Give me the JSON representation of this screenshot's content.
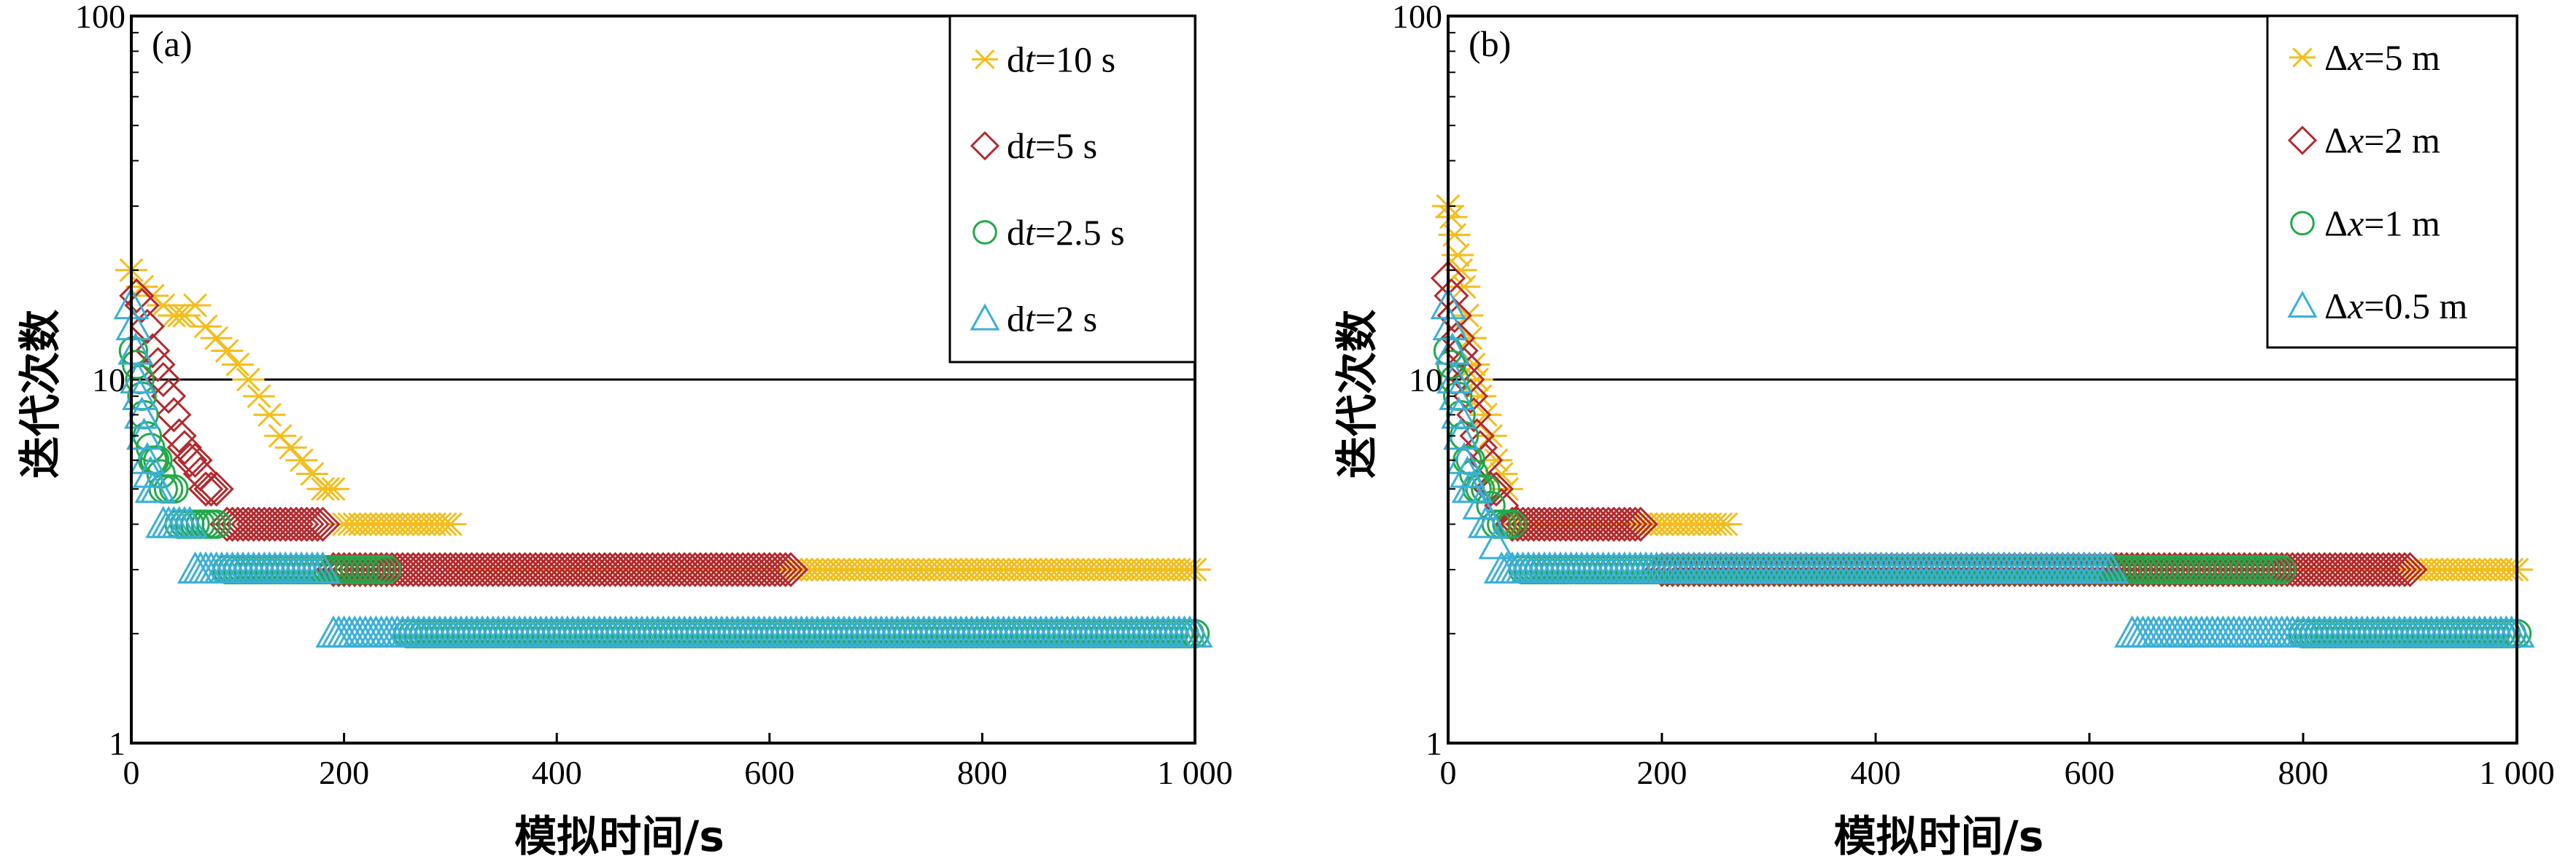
{
  "chart_data": [
    {
      "type": "scatter",
      "panel_label": "(a)",
      "xlabel": "模拟时间/s",
      "ylabel": "迭代次数",
      "xscale": "linear",
      "yscale": "log",
      "xlim": [
        0,
        1000
      ],
      "ylim": [
        1,
        100
      ],
      "xticks": [
        0,
        200,
        400,
        600,
        800,
        1000
      ],
      "xtick_labels": [
        "0",
        "200",
        "400",
        "600",
        "800",
        "1 000"
      ],
      "yticks": [
        1,
        10,
        100
      ],
      "ytick_labels": [
        "1",
        "10",
        "100"
      ],
      "grid": "horizontal at decades",
      "legend_position": "top-right",
      "series": [
        {
          "name": "dt=10 s",
          "label_prefix": "d",
          "label_var": "t",
          "label_suffix": "=10 s",
          "marker": "asterisk",
          "color": "#F2BE1E",
          "x": [
            0,
            10,
            20,
            30,
            40,
            50,
            60,
            70,
            80,
            90,
            100,
            110,
            120,
            130,
            140,
            150,
            160,
            170,
            180,
            190,
            200,
            210,
            220,
            230,
            240,
            250,
            260,
            270,
            280,
            290,
            300,
            310,
            320,
            330,
            340,
            350,
            360,
            370,
            380,
            390,
            400,
            410,
            420,
            430,
            440,
            450,
            460,
            470,
            480,
            490,
            500,
            510,
            520,
            530,
            540,
            550,
            560,
            570,
            580,
            590,
            600,
            610,
            620,
            630,
            640,
            650,
            660,
            670,
            680,
            690,
            700,
            710,
            720,
            730,
            740,
            750,
            760,
            770,
            780,
            790,
            800,
            810,
            820,
            830,
            840,
            850,
            860,
            870,
            880,
            890,
            900,
            910,
            920,
            930,
            940,
            950,
            960,
            970,
            980,
            990,
            1000
          ],
          "y": [
            20,
            18,
            17,
            16,
            15,
            15,
            16,
            14,
            13,
            12,
            11,
            10,
            9,
            8,
            7,
            6.5,
            6,
            5.5,
            5,
            5,
            4,
            4,
            4,
            4,
            4,
            4,
            4,
            4,
            4,
            4,
            4,
            3,
            3,
            3,
            3,
            3,
            3,
            3,
            3,
            3,
            3,
            3,
            3,
            3,
            3,
            3,
            3,
            3,
            3,
            3,
            3,
            3,
            3,
            3,
            3,
            3,
            3,
            3,
            3,
            3,
            3,
            3,
            3,
            3,
            3,
            3,
            3,
            3,
            3,
            3,
            3,
            3,
            3,
            3,
            3,
            3,
            3,
            3,
            3,
            3,
            3,
            3,
            3,
            3,
            3,
            3,
            3,
            3,
            3,
            3,
            3,
            3,
            3,
            3,
            3,
            3,
            3,
            3,
            3,
            3,
            3
          ]
        },
        {
          "name": "dt=5 s",
          "label_prefix": "d",
          "label_var": "t",
          "label_suffix": "=5 s",
          "marker": "diamond",
          "color": "#B22A2E",
          "x": [
            5,
            10,
            15,
            20,
            25,
            30,
            35,
            40,
            45,
            50,
            55,
            60,
            65,
            70,
            75,
            80,
            90,
            100,
            110,
            120,
            130,
            140,
            150,
            160,
            170,
            180,
            190,
            200,
            210,
            220,
            230,
            240,
            250,
            260,
            280,
            300,
            320,
            340,
            360,
            380,
            400,
            420,
            440,
            460,
            480,
            500,
            520,
            540,
            560,
            580,
            600,
            620
          ],
          "y": [
            17,
            16,
            14,
            12,
            11,
            10,
            9,
            8,
            7,
            6.5,
            6,
            6,
            5.5,
            5,
            5,
            5,
            4,
            4,
            4,
            4,
            4,
            4,
            4,
            4,
            4,
            4,
            3,
            3,
            3,
            3,
            3,
            3,
            3,
            3,
            3,
            3,
            3,
            3,
            3,
            3,
            3,
            3,
            3,
            3,
            3,
            3,
            3,
            3,
            3,
            3,
            3,
            3
          ]
        },
        {
          "name": "dt=2.5 s",
          "label_prefix": "d",
          "label_var": "t",
          "label_suffix": "=2.5 s",
          "marker": "circle",
          "color": "#22A84A",
          "x": [
            2,
            5,
            8,
            10,
            12,
            15,
            18,
            20,
            22,
            25,
            28,
            30,
            35,
            40,
            45,
            50,
            55,
            60,
            65,
            70,
            75,
            80,
            90,
            100,
            110,
            120,
            140,
            160,
            180,
            200,
            220,
            240,
            260,
            300,
            340,
            380,
            420,
            460,
            500,
            540,
            580,
            620,
            660,
            700,
            740,
            780,
            820,
            860,
            900,
            940,
            980,
            1000
          ],
          "y": [
            12,
            11,
            10,
            9,
            8,
            7,
            6.5,
            6,
            6,
            6,
            5.5,
            5,
            5,
            5,
            4,
            4,
            4,
            4,
            4,
            4,
            4,
            4,
            3,
            3,
            3,
            3,
            3,
            3,
            3,
            3,
            3,
            3,
            2,
            2,
            2,
            2,
            2,
            2,
            2,
            2,
            2,
            2,
            2,
            2,
            2,
            2,
            2,
            2,
            2,
            2,
            2,
            2
          ]
        },
        {
          "name": "dt=2 s",
          "label_prefix": "d",
          "label_var": "t",
          "label_suffix": "=2 s",
          "marker": "triangle",
          "color": "#3AAFD6",
          "x": [
            0,
            2,
            4,
            6,
            8,
            10,
            12,
            15,
            18,
            20,
            25,
            30,
            35,
            40,
            45,
            50,
            55,
            60,
            70,
            80,
            90,
            100,
            110,
            120,
            140,
            160,
            180,
            190,
            200,
            220,
            240,
            260,
            300,
            340,
            380,
            420,
            460,
            500,
            540,
            580,
            620,
            660,
            700,
            740,
            780,
            820,
            860,
            900,
            940,
            980,
            1000
          ],
          "y": [
            16,
            14,
            12,
            10,
            9,
            8,
            7,
            6,
            5.5,
            5,
            5,
            4,
            4,
            4,
            4,
            4,
            4,
            3,
            3,
            3,
            3,
            3,
            3,
            3,
            3,
            3,
            3,
            2,
            2,
            2,
            2,
            2,
            2,
            2,
            2,
            2,
            2,
            2,
            2,
            2,
            2,
            2,
            2,
            2,
            2,
            2,
            2,
            2,
            2,
            2,
            2
          ]
        }
      ]
    },
    {
      "type": "scatter",
      "panel_label": "(b)",
      "xlabel": "模拟时间/s",
      "ylabel": "迭代次数",
      "xscale": "linear",
      "yscale": "log",
      "xlim": [
        0,
        1000
      ],
      "ylim": [
        1,
        100
      ],
      "xticks": [
        0,
        200,
        400,
        600,
        800,
        1000
      ],
      "xtick_labels": [
        "0",
        "200",
        "400",
        "600",
        "800",
        "1 000"
      ],
      "yticks": [
        1,
        10,
        100
      ],
      "ytick_labels": [
        "1",
        "10",
        "100"
      ],
      "grid": "horizontal at decades",
      "legend_position": "top-right",
      "series": [
        {
          "name": "Δx=5 m",
          "label_prefix": "Δ",
          "label_var": "x",
          "label_suffix": "=5 m",
          "marker": "asterisk",
          "color": "#F2BE1E",
          "x": [
            0,
            3,
            6,
            9,
            12,
            15,
            18,
            21,
            24,
            27,
            30,
            35,
            40,
            45,
            50,
            55,
            60,
            70,
            80,
            90,
            100,
            120,
            140,
            160,
            180,
            200,
            220,
            240,
            260,
            280,
            300,
            340,
            380,
            420,
            460,
            500,
            540,
            580,
            620,
            660,
            700,
            740,
            780,
            820,
            860,
            880,
            900,
            920,
            940,
            960,
            980,
            1000
          ],
          "y": [
            30,
            28,
            25,
            22,
            20,
            18,
            15,
            13,
            11,
            10,
            9,
            8,
            7,
            6,
            5.5,
            5,
            4,
            4,
            4,
            4,
            4,
            4,
            4,
            4,
            4,
            4,
            4,
            4,
            4,
            3,
            3,
            3,
            3,
            3,
            3,
            3,
            3,
            3,
            3,
            3,
            3,
            3,
            3,
            3,
            3,
            3,
            3,
            3,
            3,
            3,
            3,
            3
          ]
        },
        {
          "name": "Δx=2 m",
          "label_prefix": "Δ",
          "label_var": "x",
          "label_suffix": "=2 m",
          "marker": "diamond",
          "color": "#B22A2E",
          "x": [
            0,
            3,
            6,
            9,
            12,
            15,
            18,
            21,
            24,
            27,
            30,
            35,
            40,
            45,
            50,
            60,
            70,
            80,
            100,
            120,
            140,
            160,
            180,
            200,
            240,
            280,
            320,
            360,
            400,
            440,
            480,
            520,
            560,
            600,
            640,
            680,
            720,
            760,
            800,
            820,
            840,
            860,
            880,
            900
          ],
          "y": [
            19,
            17,
            15,
            13,
            12,
            11,
            10,
            9,
            8,
            7,
            6.5,
            6,
            5,
            5,
            4.5,
            4,
            4,
            4,
            4,
            4,
            4,
            4,
            4,
            3,
            3,
            3,
            3,
            3,
            3,
            3,
            3,
            3,
            3,
            3,
            3,
            3,
            3,
            3,
            3,
            3,
            3,
            3,
            3,
            3
          ]
        },
        {
          "name": "Δx=1 m",
          "label_prefix": "Δ",
          "label_var": "x",
          "label_suffix": "=1 m",
          "marker": "circle",
          "color": "#22A84A",
          "x": [
            0,
            3,
            6,
            9,
            12,
            15,
            18,
            21,
            24,
            27,
            30,
            35,
            40,
            45,
            50,
            60,
            70,
            80,
            100,
            140,
            180,
            220,
            260,
            300,
            340,
            380,
            420,
            460,
            500,
            540,
            580,
            620,
            660,
            700,
            740,
            780,
            800,
            820,
            860,
            900,
            940,
            980,
            1000
          ],
          "y": [
            12,
            11,
            10,
            9,
            8,
            7,
            6,
            6,
            5.5,
            5,
            5,
            5,
            4.5,
            4,
            4,
            4,
            3,
            3,
            3,
            3,
            3,
            3,
            3,
            3,
            3,
            3,
            3,
            3,
            3,
            3,
            3,
            3,
            3,
            3,
            3,
            3,
            2,
            2,
            2,
            2,
            2,
            2,
            2
          ]
        },
        {
          "name": "Δx=0.5 m",
          "label_prefix": "Δ",
          "label_var": "x",
          "label_suffix": "=0.5 m",
          "marker": "triangle",
          "color": "#3AAFD6",
          "x": [
            0,
            2,
            4,
            6,
            8,
            10,
            12,
            15,
            18,
            20,
            25,
            30,
            35,
            40,
            45,
            50,
            60,
            70,
            80,
            100,
            140,
            180,
            220,
            260,
            300,
            340,
            380,
            420,
            460,
            500,
            540,
            580,
            620,
            640,
            660,
            700,
            740,
            780,
            820,
            860,
            900,
            940,
            980,
            1000
          ],
          "y": [
            16,
            14,
            12,
            10,
            9,
            8,
            7,
            6,
            5.5,
            5,
            5,
            4.5,
            4,
            4,
            3.5,
            3,
            3,
            3,
            3,
            3,
            3,
            3,
            3,
            3,
            3,
            3,
            3,
            3,
            3,
            3,
            3,
            3,
            3,
            2,
            2,
            2,
            2,
            2,
            2,
            2,
            2,
            2,
            2,
            2
          ]
        }
      ]
    }
  ]
}
